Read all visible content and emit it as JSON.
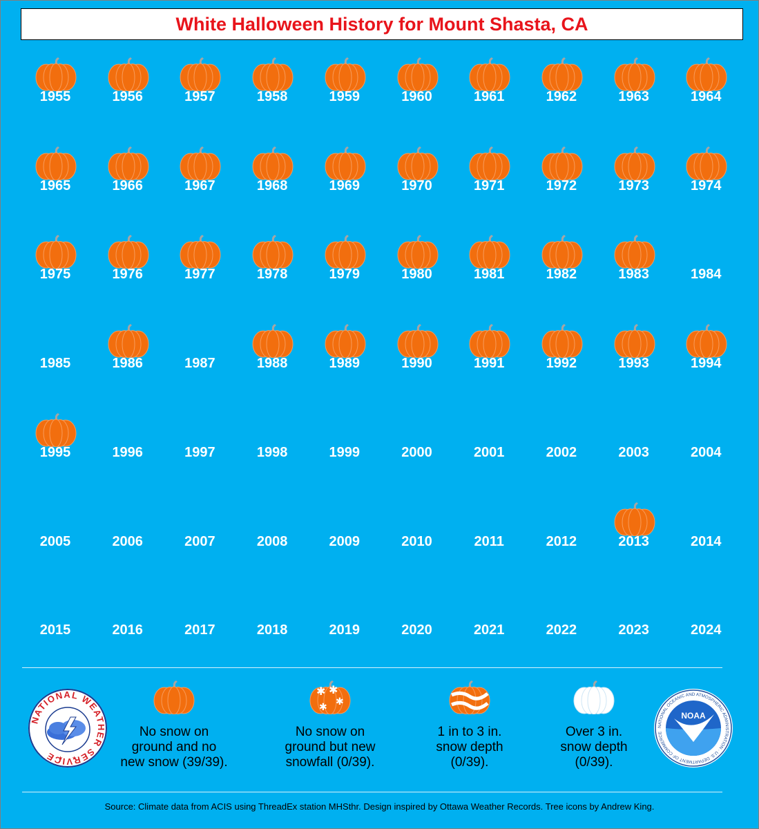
{
  "title": "White Halloween History for Mount Shasta, CA",
  "chart_data": {
    "type": "table",
    "title": "White Halloween History for Mount Shasta, CA",
    "categories": [
      "No snow on ground and no new snow",
      "No snow on ground but new snowfall",
      "1 in to 3 in. snow depth",
      "Over 3 in. snow depth"
    ],
    "years": [
      {
        "year": "1955",
        "status": "no_snow"
      },
      {
        "year": "1956",
        "status": "no_snow"
      },
      {
        "year": "1957",
        "status": "no_snow"
      },
      {
        "year": "1958",
        "status": "no_snow"
      },
      {
        "year": "1959",
        "status": "no_snow"
      },
      {
        "year": "1960",
        "status": "no_snow"
      },
      {
        "year": "1961",
        "status": "no_snow"
      },
      {
        "year": "1962",
        "status": "no_snow"
      },
      {
        "year": "1963",
        "status": "no_snow"
      },
      {
        "year": "1964",
        "status": "no_snow"
      },
      {
        "year": "1965",
        "status": "no_snow"
      },
      {
        "year": "1966",
        "status": "no_snow"
      },
      {
        "year": "1967",
        "status": "no_snow"
      },
      {
        "year": "1968",
        "status": "no_snow"
      },
      {
        "year": "1969",
        "status": "no_snow"
      },
      {
        "year": "1970",
        "status": "no_snow"
      },
      {
        "year": "1971",
        "status": "no_snow"
      },
      {
        "year": "1972",
        "status": "no_snow"
      },
      {
        "year": "1973",
        "status": "no_snow"
      },
      {
        "year": "1974",
        "status": "no_snow"
      },
      {
        "year": "1975",
        "status": "no_snow"
      },
      {
        "year": "1976",
        "status": "no_snow"
      },
      {
        "year": "1977",
        "status": "no_snow"
      },
      {
        "year": "1978",
        "status": "no_snow"
      },
      {
        "year": "1979",
        "status": "no_snow"
      },
      {
        "year": "1980",
        "status": "no_snow"
      },
      {
        "year": "1981",
        "status": "no_snow"
      },
      {
        "year": "1982",
        "status": "no_snow"
      },
      {
        "year": "1983",
        "status": "no_snow"
      },
      {
        "year": "1984",
        "status": "missing"
      },
      {
        "year": "1985",
        "status": "missing"
      },
      {
        "year": "1986",
        "status": "no_snow"
      },
      {
        "year": "1987",
        "status": "missing"
      },
      {
        "year": "1988",
        "status": "no_snow"
      },
      {
        "year": "1989",
        "status": "no_snow"
      },
      {
        "year": "1990",
        "status": "no_snow"
      },
      {
        "year": "1991",
        "status": "no_snow"
      },
      {
        "year": "1992",
        "status": "no_snow"
      },
      {
        "year": "1993",
        "status": "no_snow"
      },
      {
        "year": "1994",
        "status": "no_snow"
      },
      {
        "year": "1995",
        "status": "no_snow"
      },
      {
        "year": "1996",
        "status": "missing"
      },
      {
        "year": "1997",
        "status": "missing"
      },
      {
        "year": "1998",
        "status": "missing"
      },
      {
        "year": "1999",
        "status": "missing"
      },
      {
        "year": "2000",
        "status": "missing"
      },
      {
        "year": "2001",
        "status": "missing"
      },
      {
        "year": "2002",
        "status": "missing"
      },
      {
        "year": "2003",
        "status": "missing"
      },
      {
        "year": "2004",
        "status": "missing"
      },
      {
        "year": "2005",
        "status": "missing"
      },
      {
        "year": "2006",
        "status": "missing"
      },
      {
        "year": "2007",
        "status": "missing"
      },
      {
        "year": "2008",
        "status": "missing"
      },
      {
        "year": "2009",
        "status": "missing"
      },
      {
        "year": "2010",
        "status": "missing"
      },
      {
        "year": "2011",
        "status": "missing"
      },
      {
        "year": "2012",
        "status": "missing"
      },
      {
        "year": "2013",
        "status": "no_snow"
      },
      {
        "year": "2014",
        "status": "missing"
      },
      {
        "year": "2015",
        "status": "missing"
      },
      {
        "year": "2016",
        "status": "missing"
      },
      {
        "year": "2017",
        "status": "missing"
      },
      {
        "year": "2018",
        "status": "missing"
      },
      {
        "year": "2019",
        "status": "missing"
      },
      {
        "year": "2020",
        "status": "missing"
      },
      {
        "year": "2021",
        "status": "missing"
      },
      {
        "year": "2022",
        "status": "missing"
      },
      {
        "year": "2023",
        "status": "missing"
      },
      {
        "year": "2024",
        "status": "missing"
      }
    ],
    "counts": {
      "no_snow": 39,
      "new_snowfall": 0,
      "depth_1_to_3": 0,
      "depth_over_3": 0,
      "total": 39
    }
  },
  "legend": [
    {
      "icon": "pumpkin-icon",
      "lines": [
        "No snow on",
        "ground and no",
        "new snow (39/39)."
      ]
    },
    {
      "icon": "snowflake-pumpkin-icon",
      "lines": [
        "No snow on",
        "ground but new",
        "snowfall (0/39)."
      ]
    },
    {
      "icon": "striped-snow-pumpkin-icon",
      "lines": [
        "1 in to 3 in.",
        "snow depth",
        "(0/39)."
      ]
    },
    {
      "icon": "white-pumpkin-icon",
      "lines": [
        "Over 3 in.",
        "snow depth",
        "(0/39)."
      ]
    }
  ],
  "logos": {
    "nws_text": "NATIONAL WEATHER SERVICE",
    "noaa_text": "NOAA",
    "noaa_ring_text": "NATIONAL OCEANIC AND ATMOSPHERIC ADMINISTRATION · U.S. DEPARTMENT OF COMMERCE"
  },
  "source": "Source: Climate data from ACIS using ThreadEx station MHSthr. Design inspired by Ottawa Weather Records. Tree icons by Andrew King.",
  "colors": {
    "background": "#00B0F0",
    "title": "#E8141B",
    "pumpkin": "#F26E0E",
    "pumpkin_rib": "#F89B5A",
    "stem": "#A5A5A5"
  }
}
